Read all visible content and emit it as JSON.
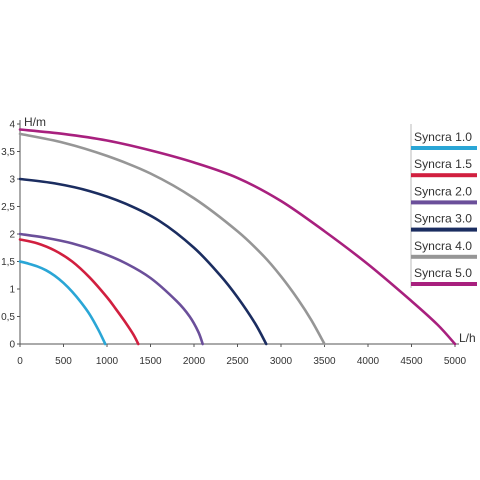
{
  "chart_data": {
    "type": "line",
    "title": "",
    "xlabel": "L/h",
    "ylabel": "H/m",
    "xlim": [
      0,
      5000
    ],
    "ylim": [
      0,
      4
    ],
    "xticks": [
      "0",
      "500",
      "1000",
      "1500",
      "2000",
      "2500",
      "3000",
      "3500",
      "4000",
      "4500",
      "5000"
    ],
    "yticks": [
      "0",
      "0,5",
      "1",
      "1,5",
      "2",
      "2,5",
      "3",
      "3,5",
      "4"
    ],
    "grid": false,
    "legend_position": "right",
    "series": [
      {
        "name": "Syncra 1.0",
        "color": "#2aa6d6",
        "x": [
          0,
          100,
          200,
          300,
          400,
          500,
          600,
          700,
          800,
          900,
          980
        ],
        "y": [
          1.5,
          1.46,
          1.41,
          1.34,
          1.24,
          1.11,
          0.95,
          0.76,
          0.54,
          0.26,
          0.0
        ]
      },
      {
        "name": "Syncra 1.5",
        "color": "#d11f3f",
        "x": [
          0,
          200,
          400,
          600,
          800,
          1000,
          1100,
          1200,
          1300,
          1360
        ],
        "y": [
          1.9,
          1.83,
          1.7,
          1.5,
          1.21,
          0.85,
          0.64,
          0.42,
          0.18,
          0.0
        ]
      },
      {
        "name": "Syncra 2.0",
        "color": "#6b4f9a",
        "x": [
          0,
          300,
          600,
          900,
          1200,
          1500,
          1800,
          1950,
          2050,
          2100
        ],
        "y": [
          2.0,
          1.93,
          1.83,
          1.68,
          1.48,
          1.2,
          0.78,
          0.5,
          0.22,
          0.0
        ]
      },
      {
        "name": "Syncra 3.0",
        "color": "#1b2d60",
        "x": [
          0,
          400,
          800,
          1200,
          1600,
          2000,
          2300,
          2500,
          2700,
          2830
        ],
        "y": [
          3.0,
          2.92,
          2.78,
          2.56,
          2.24,
          1.75,
          1.25,
          0.85,
          0.38,
          0.0
        ]
      },
      {
        "name": "Syncra 4.0",
        "color": "#969696",
        "x": [
          0,
          500,
          1000,
          1500,
          2000,
          2500,
          2800,
          3000,
          3200,
          3350,
          3500
        ],
        "y": [
          3.82,
          3.66,
          3.42,
          3.1,
          2.65,
          2.05,
          1.6,
          1.23,
          0.8,
          0.43,
          0.0
        ]
      },
      {
        "name": "Syncra 5.0",
        "color": "#a8207e",
        "x": [
          0,
          500,
          1000,
          1500,
          2000,
          2500,
          3000,
          3500,
          4000,
          4500,
          4800,
          5000
        ],
        "y": [
          3.9,
          3.82,
          3.7,
          3.52,
          3.3,
          3.02,
          2.6,
          2.05,
          1.45,
          0.78,
          0.35,
          0.0
        ]
      }
    ]
  }
}
